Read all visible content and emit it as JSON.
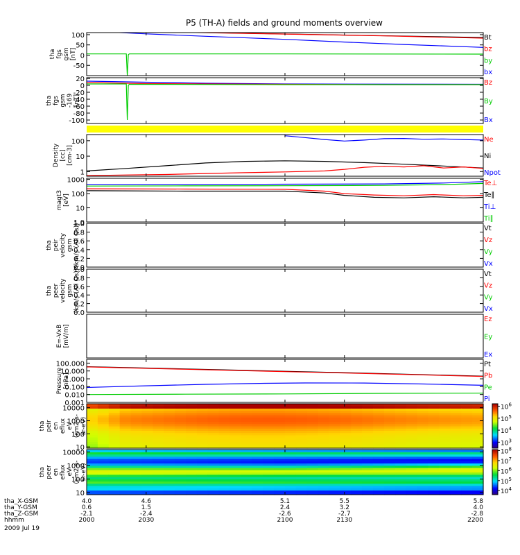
{
  "title": "P5 (TH-A) fields and ground moments overview",
  "time_axis": {
    "rows": [
      {
        "label": "tha_X-GSM",
        "values": [
          "4.0",
          "4.6",
          "5.1",
          "5.5",
          "5.8"
        ]
      },
      {
        "label": "tha_Y-GSM",
        "values": [
          "0.6",
          "1.5",
          "2.4",
          "3.2",
          "4.0"
        ]
      },
      {
        "label": "tha_Z-GSM",
        "values": [
          "-2.1",
          "-2.4",
          "-2.6",
          "-2.7",
          "-2.8"
        ]
      },
      {
        "label": "hhmm",
        "values": [
          "2000",
          "2030",
          "2100",
          "2130",
          "2200"
        ]
      }
    ],
    "date": "2009 Jul 19",
    "hhmm_range": [
      "2000",
      "2200"
    ]
  },
  "chart_data": [
    {
      "type": "line",
      "ylabel": [
        "tha",
        "fgs",
        "gsm",
        "[nT]"
      ],
      "ylim": [
        -100,
        110
      ],
      "yticks": [
        {
          "v": 100,
          "t": "100"
        },
        {
          "v": 50,
          "t": "50"
        },
        {
          "v": 0,
          "t": "0"
        },
        {
          "v": -50,
          "t": "-50"
        }
      ],
      "legend": [
        {
          "name": "Bt",
          "color": "#000000"
        },
        {
          "name": "bz",
          "color": "#ff0000"
        },
        {
          "name": "by",
          "color": "#00cc00"
        },
        {
          "name": "bx",
          "color": "#0000ff"
        }
      ],
      "series": [
        {
          "name": "Bt",
          "color": "#000000",
          "x": [
            2050,
            2200
          ],
          "y": [
            112,
            86
          ]
        },
        {
          "name": "bz",
          "color": "#ff0000",
          "x": [
            2050,
            2100,
            2150,
            2200
          ],
          "y": [
            111,
            103,
            94,
            83
          ]
        },
        {
          "name": "bx",
          "color": "#0000ff",
          "x": [
            2000,
            2030,
            2060,
            2100,
            2130,
            2160,
            2200
          ],
          "y": [
            118,
            104,
            92,
            77,
            64,
            52,
            38
          ]
        },
        {
          "name": "by",
          "color": "#00cc00",
          "x": [
            2000,
            2020,
            2020.5,
            2021,
            2021.5,
            2100,
            2200
          ],
          "y": [
            6,
            6,
            -100,
            2,
            6,
            6,
            5
          ]
        }
      ]
    },
    {
      "type": "line",
      "ylabel": [
        "tha",
        "fgs",
        "gsm",
        "-169",
        "[nT]"
      ],
      "ylim": [
        -110,
        22
      ],
      "yticks": [
        {
          "v": 20,
          "t": "20"
        },
        {
          "v": 0,
          "t": "0"
        },
        {
          "v": -20,
          "t": "-20"
        },
        {
          "v": -40,
          "t": "-40"
        },
        {
          "v": -60,
          "t": "-60"
        },
        {
          "v": -80,
          "t": "-80"
        },
        {
          "v": -100,
          "t": "-100"
        }
      ],
      "legend": [
        {
          "name": "Bz",
          "color": "#ff0000"
        },
        {
          "name": "By",
          "color": "#00cc00"
        },
        {
          "name": "Bx",
          "color": "#0000ff"
        }
      ],
      "series": [
        {
          "name": "Bx",
          "color": "#0000ff",
          "x": [
            2000,
            2030,
            2060,
            2100,
            2200
          ],
          "y": [
            12,
            9,
            6,
            4,
            3
          ]
        },
        {
          "name": "Bz",
          "color": "#ff0000",
          "x": [
            2000,
            2030,
            2060,
            2100,
            2150,
            2200
          ],
          "y": [
            8,
            5,
            4,
            3,
            2,
            2
          ]
        },
        {
          "name": "By",
          "color": "#00cc00",
          "x": [
            2000,
            2020,
            2020.5,
            2021,
            2021.5,
            2100,
            2200
          ],
          "y": [
            4,
            4,
            -100,
            0,
            3,
            2,
            2
          ]
        }
      ]
    },
    {
      "type": "line",
      "ylabel": [
        "Density",
        "[cc]",
        "[cm-3]"
      ],
      "yscale": "log",
      "ylim": [
        0.5,
        250
      ],
      "yticks": [
        {
          "v": 100,
          "t": "100"
        },
        {
          "v": 10,
          "t": "10"
        },
        {
          "v": 1,
          "t": "1"
        }
      ],
      "legend": [
        {
          "name": "Ne",
          "color": "#ff0000"
        },
        {
          "name": "Ni",
          "color": "#000000"
        },
        {
          "name": "Npot",
          "color": "#0000ff"
        }
      ],
      "series": [
        {
          "name": "Npot",
          "color": "#0000ff",
          "x": [
            2100,
            2110,
            2120,
            2130,
            2140,
            2150,
            2160,
            2170,
            2180,
            2190,
            2200
          ],
          "y": [
            210,
            160,
            120,
            95,
            110,
            135,
            140,
            125,
            130,
            120,
            110
          ]
        },
        {
          "name": "Ni",
          "color": "#000000",
          "x": [
            2000,
            2020,
            2040,
            2060,
            2080,
            2100,
            2120,
            2140,
            2160,
            2180,
            2200
          ],
          "y": [
            1.1,
            1.6,
            2.4,
            3.6,
            4.6,
            5.0,
            4.6,
            3.8,
            3.0,
            2.3,
            1.7
          ]
        },
        {
          "name": "Ne",
          "color": "#ff0000",
          "x": [
            2000,
            2020,
            2040,
            2060,
            2080,
            2100,
            2120,
            2130,
            2140,
            2150,
            2160,
            2170,
            2180,
            2190,
            2200
          ],
          "y": [
            0.55,
            0.6,
            0.65,
            0.75,
            0.85,
            0.95,
            1.1,
            1.4,
            1.9,
            2.2,
            2.0,
            2.4,
            1.7,
            2.0,
            1.6
          ]
        }
      ]
    },
    {
      "type": "line",
      "ylabel": [
        "magt3",
        "[eV]"
      ],
      "yscale": "log",
      "ylim": [
        1,
        1200
      ],
      "yticks": [
        {
          "v": 1000,
          "t": "1000"
        },
        {
          "v": 100,
          "t": "100"
        },
        {
          "v": 10,
          "t": "10"
        },
        {
          "v": 1,
          "t": "1.0"
        }
      ],
      "legend": [
        {
          "name": "Te⊥",
          "color": "#ff0000"
        },
        {
          "name": "Te∥",
          "color": "#000000"
        },
        {
          "name": "Ti⊥",
          "color": "#0000ff"
        },
        {
          "name": "Ti∥",
          "color": "#00cc00"
        }
      ],
      "series": [
        {
          "name": "Ti⊥",
          "color": "#0000ff",
          "x": [
            2000,
            2050,
            2100,
            2150,
            2180,
            2200
          ],
          "y": [
            450,
            450,
            460,
            480,
            560,
            700
          ]
        },
        {
          "name": "Ti∥",
          "color": "#00cc00",
          "x": [
            2000,
            2050,
            2100,
            2150,
            2180,
            2200
          ],
          "y": [
            340,
            350,
            360,
            380,
            430,
            520
          ]
        },
        {
          "name": "Te⊥",
          "color": "#ff0000",
          "x": [
            2000,
            2050,
            2100,
            2120,
            2130,
            2145,
            2160,
            2175,
            2190,
            2200
          ],
          "y": [
            220,
            210,
            200,
            150,
            100,
            80,
            70,
            85,
            70,
            75
          ]
        },
        {
          "name": "Te∥",
          "color": "#000000",
          "x": [
            2000,
            2050,
            2100,
            2120,
            2130,
            2145,
            2160,
            2175,
            2190,
            2200
          ],
          "y": [
            160,
            150,
            150,
            110,
            75,
            55,
            50,
            60,
            50,
            55
          ]
        }
      ]
    },
    {
      "type": "line",
      "ylabel": [
        "tha",
        "peir",
        "velocity",
        "gsm",
        "(km/s (All Qs))"
      ],
      "ylim": [
        0,
        1
      ],
      "yticks": [
        {
          "v": 1,
          "t": "1.0"
        },
        {
          "v": 0.8,
          "t": "0.8"
        },
        {
          "v": 0.6,
          "t": "0.6"
        },
        {
          "v": 0.4,
          "t": "0.4"
        },
        {
          "v": 0.2,
          "t": "0.2"
        },
        {
          "v": 0,
          "t": "0.0"
        }
      ],
      "legend": [
        {
          "name": "Vt",
          "color": "#000000"
        },
        {
          "name": "Vz",
          "color": "#ff0000"
        },
        {
          "name": "Vy",
          "color": "#00cc00"
        },
        {
          "name": "Vx",
          "color": "#0000ff"
        }
      ],
      "series": []
    },
    {
      "type": "line",
      "ylabel": [
        "tha",
        "peer",
        "velocity",
        "gsm",
        "(km/s (All Qs))"
      ],
      "ylim": [
        0,
        1
      ],
      "yticks": [
        {
          "v": 1,
          "t": "1.0"
        },
        {
          "v": 0.8,
          "t": "0.8"
        },
        {
          "v": 0.6,
          "t": "0.6"
        },
        {
          "v": 0.4,
          "t": "0.4"
        },
        {
          "v": 0.2,
          "t": "0.2"
        },
        {
          "v": 0,
          "t": "0.0"
        }
      ],
      "legend": [
        {
          "name": "Vt",
          "color": "#000000"
        },
        {
          "name": "Vz",
          "color": "#ff0000"
        },
        {
          "name": "Vy",
          "color": "#00cc00"
        },
        {
          "name": "Vx",
          "color": "#0000ff"
        }
      ],
      "series": []
    },
    {
      "type": "line",
      "ylabel": [
        "E=-VxB",
        "[mV/m]"
      ],
      "ylim": [
        0,
        1
      ],
      "yticks": [],
      "legend": [
        {
          "name": "Ez",
          "color": "#ff0000"
        },
        {
          "name": "Ey",
          "color": "#00cc00"
        },
        {
          "name": "Ex",
          "color": "#0000ff"
        }
      ],
      "series": []
    },
    {
      "type": "line",
      "ylabel": [
        "Pressure",
        "[nPa]"
      ],
      "yscale": "log",
      "ylim": [
        0.001,
        300
      ],
      "yticks": [
        {
          "v": 100,
          "t": "100.000"
        },
        {
          "v": 10,
          "t": "10.000"
        },
        {
          "v": 1,
          "t": "1.000"
        },
        {
          "v": 0.1,
          "t": "0.100"
        },
        {
          "v": 0.01,
          "t": "0.010"
        },
        {
          "v": 0.001,
          "t": "0.001"
        }
      ],
      "legend": [
        {
          "name": "Pt",
          "color": "#000000"
        },
        {
          "name": "Pb",
          "color": "#ff0000"
        },
        {
          "name": "Pe",
          "color": "#00cc00"
        },
        {
          "name": "Pi",
          "color": "#0000ff"
        }
      ],
      "series": [
        {
          "name": "Pt",
          "color": "#000000",
          "x": [
            2000,
            2050,
            2100,
            2150,
            2200
          ],
          "y": [
            35,
            18,
            9,
            4.5,
            2.2
          ]
        },
        {
          "name": "Pb",
          "color": "#ff0000",
          "x": [
            2000,
            2050,
            2100,
            2150,
            2200
          ],
          "y": [
            33,
            16.5,
            8.2,
            4.2,
            2.0
          ]
        },
        {
          "name": "Pi",
          "color": "#0000ff",
          "x": [
            2000,
            2030,
            2060,
            2090,
            2110,
            2140,
            2170,
            2200
          ],
          "y": [
            0.08,
            0.13,
            0.2,
            0.27,
            0.3,
            0.29,
            0.22,
            0.15
          ]
        },
        {
          "name": "Pe",
          "color": "#00cc00",
          "x": [
            2000,
            2050,
            2100,
            2150,
            2200
          ],
          "y": [
            0.01,
            0.011,
            0.012,
            0.014,
            0.015
          ]
        }
      ]
    },
    {
      "type": "heatmap",
      "ylabel": [
        "tha",
        "peir",
        "en",
        "eflux",
        "eV",
        "(cm2-s-",
        "sr-eV)"
      ],
      "yscale": "log",
      "ylim": [
        8,
        20000
      ],
      "yticks": [
        {
          "v": 10000,
          "t": "10000"
        },
        {
          "v": 1000,
          "t": "1000"
        },
        {
          "v": 100,
          "t": "100"
        },
        {
          "v": 10,
          "t": "10"
        }
      ],
      "colorbar": {
        "min_exp": 2.5,
        "max_exp": 6.2,
        "ticks": [
          6,
          5,
          4,
          3
        ]
      }
    },
    {
      "type": "heatmap",
      "ylabel": [
        "tha",
        "peer",
        "en",
        "eflux",
        "eV",
        "(cm2-s-",
        "sr-eV)"
      ],
      "yscale": "log",
      "ylim": [
        7,
        15000
      ],
      "yticks": [
        {
          "v": 10000,
          "t": "10000"
        },
        {
          "v": 1000,
          "t": "1000"
        },
        {
          "v": 100,
          "t": "100"
        },
        {
          "v": 10,
          "t": "10"
        }
      ],
      "colorbar": {
        "min_exp": 3.6,
        "max_exp": 8.1,
        "ticks": [
          8,
          7,
          6,
          5,
          4
        ]
      }
    }
  ]
}
